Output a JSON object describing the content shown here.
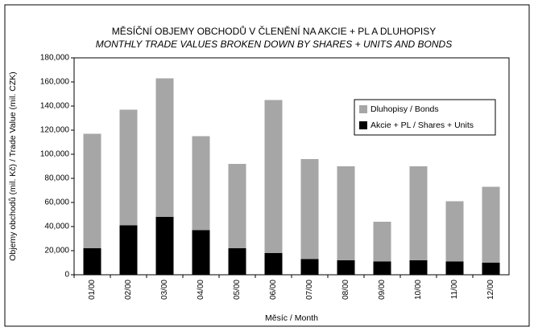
{
  "chart_data": {
    "type": "stacked_bar",
    "title": "MĚSÍČNÍ OBJEMY OBCHODŮ V ČLENĚNÍ NA AKCIE + PL A DLUHOPISY",
    "subtitle": "MONTHLY TRADE VALUES BROKEN DOWN BY SHARES + UNITS AND BONDS",
    "y_label": "Objemy obchodů (mil. Kč) / Trade Value (mil. CZK)",
    "x_label": "Měsíc / Month",
    "categories": [
      "01/00",
      "02/00",
      "03/00",
      "04/00",
      "05/00",
      "06/00",
      "07/00",
      "08/00",
      "09/00",
      "10/00",
      "11/00",
      "12/00"
    ],
    "series": [
      {
        "name": "Akcie + PL / Shares + Units",
        "color": "#000000",
        "values": [
          22000,
          41000,
          48000,
          37000,
          22000,
          18000,
          13000,
          12000,
          11000,
          12000,
          11000,
          10000
        ]
      },
      {
        "name": "Dluhopisy / Bonds",
        "color": "#a6a6a6",
        "values": [
          95000,
          96000,
          115000,
          78000,
          70000,
          127000,
          83000,
          78000,
          33000,
          78000,
          50000,
          63000
        ]
      }
    ],
    "ylim": [
      0,
      180000
    ],
    "yticks": [
      0,
      {
        "value": 20000,
        "label": "20,000"
      },
      {
        "value": 40000,
        "label": "40,000"
      },
      {
        "value": 60000,
        "label": "60,000"
      },
      {
        "value": 80000,
        "label": "80,000"
      },
      {
        "value": 100000,
        "label": "100,000"
      },
      {
        "value": 120000,
        "label": "120,000"
      },
      {
        "value": 140000,
        "label": "140,000"
      },
      {
        "value": 160000,
        "label": "160,000"
      },
      {
        "value": 180000,
        "label": "180,000"
      }
    ],
    "legend": "top-right"
  }
}
